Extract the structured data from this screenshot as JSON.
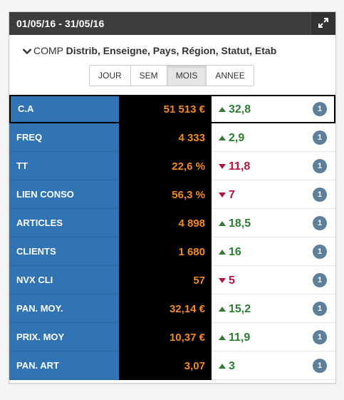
{
  "header": {
    "title": "01/05/16 - 31/05/16",
    "expand_icon": "expand-icon"
  },
  "comp": {
    "prefix": "COMP",
    "dimensions": "Distrib, Enseigne, Pays, Région, Statut, Etab"
  },
  "periods": [
    {
      "label": "JOUR",
      "active": false
    },
    {
      "label": "SEM",
      "active": false
    },
    {
      "label": "MOIS",
      "active": true
    },
    {
      "label": "ANNEE",
      "active": false
    }
  ],
  "colors": {
    "up": "#2e7d32",
    "down": "#b0163a",
    "value": "#f08a24",
    "name_bg": "#3074b4"
  },
  "rows": [
    {
      "name": "C.A",
      "value": "51 513 €",
      "direction": "up",
      "delta": "32,8",
      "badge": "1"
    },
    {
      "name": "FREQ",
      "value": "4 333",
      "direction": "up",
      "delta": "2,9",
      "badge": "1"
    },
    {
      "name": "TT",
      "value": "22,6 %",
      "direction": "down",
      "delta": "11,8",
      "badge": "1"
    },
    {
      "name": "LIEN CONSO",
      "value": "56,3 %",
      "direction": "down",
      "delta": "7",
      "badge": "1"
    },
    {
      "name": "ARTICLES",
      "value": "4 898",
      "direction": "up",
      "delta": "18,5",
      "badge": "1"
    },
    {
      "name": "CLIENTS",
      "value": "1 680",
      "direction": "up",
      "delta": "16",
      "badge": "1"
    },
    {
      "name": "NVX CLI",
      "value": "57",
      "direction": "down",
      "delta": "5",
      "badge": "1"
    },
    {
      "name": "PAN. MOY.",
      "value": "32,14 €",
      "direction": "up",
      "delta": "15,2",
      "badge": "1"
    },
    {
      "name": "PRIX. MOY",
      "value": "10,37 €",
      "direction": "up",
      "delta": "11,9",
      "badge": "1"
    },
    {
      "name": "PAN. ART",
      "value": "3,07",
      "direction": "up",
      "delta": "3",
      "badge": "1"
    }
  ]
}
